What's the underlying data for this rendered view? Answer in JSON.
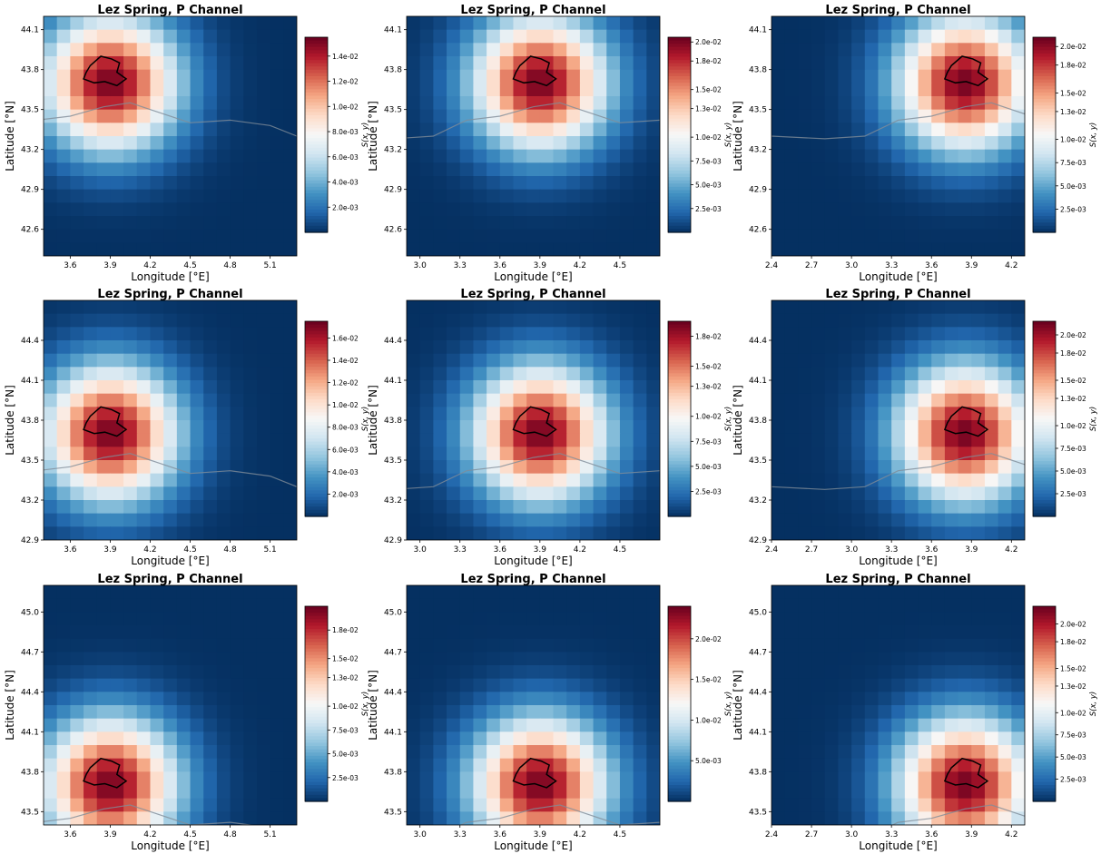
{
  "colormap": [
    "#053061",
    "#2166ac",
    "#4393c3",
    "#92c5de",
    "#d1e5f0",
    "#f7f7f7",
    "#fddbc7",
    "#f4a582",
    "#d6604d",
    "#b2182b",
    "#67001f"
  ],
  "contour_color": "#000000",
  "coastline_color": "#7f8c99",
  "chart_data": [
    {
      "type": "heatmap",
      "title": "Lez Spring, P Channel",
      "xlabel": "Longitude [$^\\circ$E]",
      "ylabel": "Latitude [$^\\circ$N]",
      "colorbar_label": "S(x, y)",
      "xlim": [
        3.4,
        5.3
      ],
      "ylim": [
        42.4,
        44.2
      ],
      "nx": 19,
      "ny": 18,
      "peak": [
        3.9,
        43.7
      ],
      "spread": 0.35,
      "vmax": 0.0155,
      "xticks": [
        "3.6",
        "3.9",
        "4.2",
        "4.5",
        "4.8",
        "5.1"
      ],
      "yticks": [
        "42.6",
        "42.9",
        "43.2",
        "43.5",
        "43.8",
        "44.1"
      ],
      "cbar_ticks": [
        "2.0e-03",
        "4.0e-03",
        "6.0e-03",
        "8.0e-03",
        "1.0e-02",
        "1.2e-02",
        "1.4e-02"
      ]
    },
    {
      "type": "heatmap",
      "title": "Lez Spring, P Channel",
      "xlabel": "Longitude [$^\\circ$E]",
      "ylabel": "Latitude [$^\\circ$N]",
      "colorbar_label": "S(x, y)",
      "xlim": [
        2.9,
        4.8
      ],
      "ylim": [
        42.4,
        44.2
      ],
      "nx": 19,
      "ny": 18,
      "peak": [
        3.9,
        43.7
      ],
      "spread": 0.35,
      "vmax": 0.0205,
      "xticks": [
        "3.0",
        "3.3",
        "3.6",
        "3.9",
        "4.2",
        "4.5"
      ],
      "yticks": [
        "42.6",
        "42.9",
        "43.2",
        "43.5",
        "43.8",
        "44.1"
      ],
      "cbar_ticks": [
        "2.5e-03",
        "5.0e-03",
        "7.5e-03",
        "1.0e-02",
        "1.3e-02",
        "1.5e-02",
        "1.8e-02",
        "2.0e-02"
      ]
    },
    {
      "type": "heatmap",
      "title": "Lez Spring, P Channel",
      "xlabel": "Longitude [$^\\circ$E]",
      "ylabel": "Latitude [$^\\circ$N]",
      "colorbar_label": "S(x, y)",
      "xlim": [
        2.4,
        4.3
      ],
      "ylim": [
        42.4,
        44.2
      ],
      "nx": 19,
      "ny": 18,
      "peak": [
        3.85,
        43.7
      ],
      "spread": 0.35,
      "vmax": 0.021,
      "xticks": [
        "2.4",
        "2.7",
        "3.0",
        "3.3",
        "3.6",
        "3.9",
        "4.2"
      ],
      "yticks": [
        "42.6",
        "42.9",
        "43.2",
        "43.5",
        "43.8",
        "44.1"
      ],
      "cbar_ticks": [
        "2.5e-03",
        "5.0e-03",
        "7.5e-03",
        "1.0e-02",
        "1.3e-02",
        "1.5e-02",
        "1.8e-02",
        "2.0e-02"
      ]
    },
    {
      "type": "heatmap",
      "title": "Lez Spring, P Channel",
      "xlabel": "Longitude [$^\\circ$E]",
      "ylabel": "Latitude [$^\\circ$N]",
      "colorbar_label": "S(x, y)",
      "xlim": [
        3.4,
        5.3
      ],
      "ylim": [
        42.9,
        44.7
      ],
      "nx": 19,
      "ny": 18,
      "peak": [
        3.9,
        43.7
      ],
      "spread": 0.35,
      "vmax": 0.0175,
      "xticks": [
        "3.6",
        "3.9",
        "4.2",
        "4.5",
        "4.8",
        "5.1"
      ],
      "yticks": [
        "42.9",
        "43.2",
        "43.5",
        "43.8",
        "44.1",
        "44.4"
      ],
      "cbar_ticks": [
        "2.0e-03",
        "4.0e-03",
        "6.0e-03",
        "8.0e-03",
        "1.0e-02",
        "1.2e-02",
        "1.4e-02",
        "1.6e-02"
      ]
    },
    {
      "type": "heatmap",
      "title": "Lez Spring, P Channel",
      "xlabel": "Longitude [$^\\circ$E]",
      "ylabel": "Latitude [$^\\circ$N]",
      "colorbar_label": "S(x, y)",
      "xlim": [
        2.9,
        4.8
      ],
      "ylim": [
        42.9,
        44.7
      ],
      "nx": 19,
      "ny": 18,
      "peak": [
        3.9,
        43.7
      ],
      "spread": 0.35,
      "vmax": 0.0195,
      "xticks": [
        "3.0",
        "3.3",
        "3.6",
        "3.9",
        "4.2",
        "4.5"
      ],
      "yticks": [
        "42.9",
        "43.2",
        "43.5",
        "43.8",
        "44.1",
        "44.4"
      ],
      "cbar_ticks": [
        "2.5e-03",
        "5.0e-03",
        "7.5e-03",
        "1.0e-02",
        "1.3e-02",
        "1.5e-02",
        "1.8e-02"
      ]
    },
    {
      "type": "heatmap",
      "title": "Lez Spring, P Channel",
      "xlabel": "Longitude [$^\\circ$E]",
      "ylabel": "Latitude [$^\\circ$N]",
      "colorbar_label": "S(x, y)",
      "xlim": [
        2.4,
        4.3
      ],
      "ylim": [
        42.9,
        44.7
      ],
      "nx": 19,
      "ny": 18,
      "peak": [
        3.85,
        43.7
      ],
      "spread": 0.35,
      "vmax": 0.0215,
      "xticks": [
        "2.4",
        "2.7",
        "3.0",
        "3.3",
        "3.6",
        "3.9",
        "4.2"
      ],
      "yticks": [
        "42.9",
        "43.2",
        "43.5",
        "43.8",
        "44.1",
        "44.4"
      ],
      "cbar_ticks": [
        "2.5e-03",
        "5.0e-03",
        "7.5e-03",
        "1.0e-02",
        "1.3e-02",
        "1.5e-02",
        "1.8e-02",
        "2.0e-02"
      ]
    },
    {
      "type": "heatmap",
      "title": "Lez Spring, P Channel",
      "xlabel": "Longitude [$^\\circ$E]",
      "ylabel": "Latitude [$^\\circ$N]",
      "colorbar_label": "S(x, y)",
      "xlim": [
        3.4,
        5.3
      ],
      "ylim": [
        43.4,
        45.2
      ],
      "nx": 19,
      "ny": 18,
      "peak": [
        3.9,
        43.7
      ],
      "spread": 0.35,
      "vmax": 0.0205,
      "xticks": [
        "3.6",
        "3.9",
        "4.2",
        "4.5",
        "4.8",
        "5.1"
      ],
      "yticks": [
        "43.5",
        "43.8",
        "44.1",
        "44.4",
        "44.7",
        "45.0"
      ],
      "cbar_ticks": [
        "2.5e-03",
        "5.0e-03",
        "7.5e-03",
        "1.0e-02",
        "1.3e-02",
        "1.5e-02",
        "1.8e-02"
      ]
    },
    {
      "type": "heatmap",
      "title": "Lez Spring, P Channel",
      "xlabel": "Longitude [$^\\circ$E]",
      "ylabel": "Latitude [$^\\circ$N]",
      "colorbar_label": "S(x, y)",
      "xlim": [
        2.9,
        4.8
      ],
      "ylim": [
        43.4,
        45.2
      ],
      "nx": 19,
      "ny": 18,
      "peak": [
        3.9,
        43.7
      ],
      "spread": 0.35,
      "vmax": 0.024,
      "xticks": [
        "3.0",
        "3.3",
        "3.6",
        "3.9",
        "4.2",
        "4.5"
      ],
      "yticks": [
        "43.5",
        "43.8",
        "44.1",
        "44.4",
        "44.7",
        "45.0"
      ],
      "cbar_ticks": [
        "5.0e-03",
        "1.0e-02",
        "1.5e-02",
        "2.0e-02"
      ]
    },
    {
      "type": "heatmap",
      "title": "Lez Spring, P Channel",
      "xlabel": "Longitude [$^\\circ$E]",
      "ylabel": "Latitude [$^\\circ$N]",
      "colorbar_label": "S(x, y)",
      "xlim": [
        2.4,
        4.3
      ],
      "ylim": [
        43.4,
        45.2
      ],
      "nx": 19,
      "ny": 18,
      "peak": [
        3.85,
        43.7
      ],
      "spread": 0.35,
      "vmax": 0.022,
      "xticks": [
        "2.4",
        "2.7",
        "3.0",
        "3.3",
        "3.6",
        "3.9",
        "4.2"
      ],
      "yticks": [
        "43.5",
        "43.8",
        "44.1",
        "44.4",
        "44.7",
        "45.0"
      ],
      "cbar_ticks": [
        "2.5e-03",
        "5.0e-03",
        "7.5e-03",
        "1.0e-02",
        "1.3e-02",
        "1.5e-02",
        "1.8e-02",
        "2.0e-02"
      ]
    }
  ]
}
